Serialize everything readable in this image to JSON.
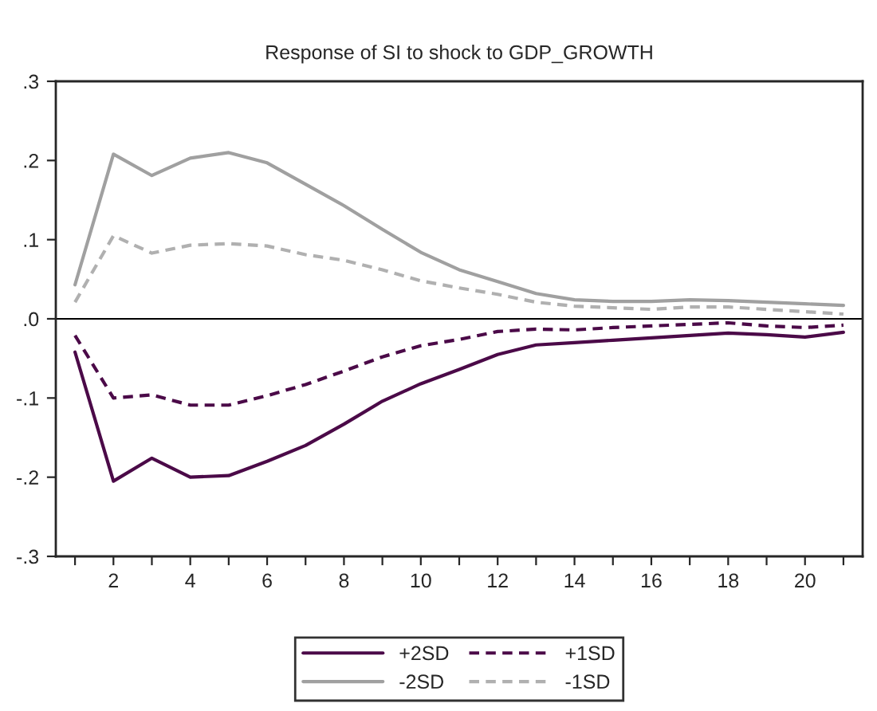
{
  "chart_data": {
    "type": "line",
    "title": "Response of SI to shock to GDP_GROWTH",
    "x": [
      1,
      2,
      3,
      4,
      5,
      6,
      7,
      8,
      9,
      10,
      11,
      12,
      13,
      14,
      15,
      16,
      17,
      18,
      19,
      20,
      21
    ],
    "series": [
      {
        "name": "+2SD",
        "color": "#4b0a48",
        "line_style": "solid",
        "values": [
          -0.042,
          -0.205,
          -0.176,
          -0.2,
          -0.198,
          -0.18,
          -0.16,
          -0.133,
          -0.104,
          -0.082,
          -0.064,
          -0.045,
          -0.033,
          -0.03,
          -0.027,
          -0.024,
          -0.021,
          -0.018,
          -0.02,
          -0.023,
          -0.017
        ]
      },
      {
        "name": "-2SD",
        "color": "#a0a0a0",
        "line_style": "solid",
        "values": [
          0.043,
          0.208,
          0.181,
          0.203,
          0.21,
          0.197,
          0.17,
          0.143,
          0.113,
          0.084,
          0.062,
          0.047,
          0.032,
          0.024,
          0.022,
          0.022,
          0.024,
          0.023,
          0.021,
          0.019,
          0.017
        ]
      },
      {
        "name": "+1SD",
        "color": "#4b0a48",
        "line_style": "dashed",
        "values": [
          -0.021,
          -0.1,
          -0.096,
          -0.109,
          -0.109,
          -0.097,
          -0.083,
          -0.066,
          -0.048,
          -0.034,
          -0.026,
          -0.016,
          -0.013,
          -0.014,
          -0.011,
          -0.009,
          -0.007,
          -0.005,
          -0.009,
          -0.011,
          -0.008
        ]
      },
      {
        "name": "-1SD",
        "color": "#b0b0b0",
        "line_style": "dashed",
        "values": [
          0.021,
          0.105,
          0.083,
          0.093,
          0.095,
          0.092,
          0.081,
          0.074,
          0.062,
          0.048,
          0.039,
          0.031,
          0.021,
          0.016,
          0.014,
          0.012,
          0.015,
          0.015,
          0.012,
          0.009,
          0.006
        ]
      }
    ],
    "xlim": [
      0.5,
      21.5
    ],
    "xticks": [
      {
        "value": 1,
        "label": null
      },
      2,
      {
        "value": 3,
        "label": null
      },
      4,
      {
        "value": 5,
        "label": null
      },
      6,
      {
        "value": 7,
        "label": null
      },
      8,
      {
        "value": 9,
        "label": null
      },
      10,
      {
        "value": 11,
        "label": null
      },
      12,
      {
        "value": 13,
        "label": null
      },
      14,
      {
        "value": 15,
        "label": null
      },
      16,
      {
        "value": 17,
        "label": null
      },
      18,
      {
        "value": 19,
        "label": null
      },
      20,
      {
        "value": 21,
        "label": null
      }
    ],
    "ylim": [
      -0.3,
      0.3
    ],
    "yticks": [
      {
        "value": -0.3,
        "label": "-.3"
      },
      {
        "value": -0.2,
        "label": "-.2"
      },
      {
        "value": -0.1,
        "label": "-.1"
      },
      {
        "value": 0,
        "label": ".0"
      },
      {
        "value": 0.1,
        "label": ".1"
      },
      {
        "value": 0.2,
        "label": ".2"
      },
      {
        "value": 0.3,
        "label": ".3"
      }
    ],
    "ref_lines": [
      {
        "axis": "y",
        "value": 0,
        "color": "#000000"
      }
    ],
    "grid": false,
    "legend": "bottom"
  }
}
